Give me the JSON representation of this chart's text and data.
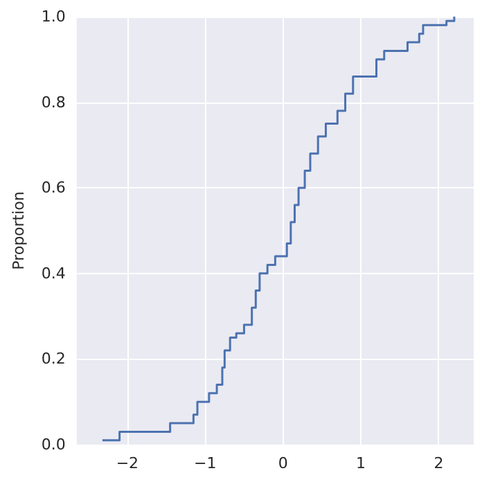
{
  "chart_data": {
    "type": "step",
    "ylabel": "Proportion",
    "x": [
      -2.32,
      -2.1,
      -1.45,
      -1.15,
      -1.1,
      -1.0,
      -0.95,
      -0.85,
      -0.78,
      -0.75,
      -0.68,
      -0.6,
      -0.5,
      -0.4,
      -0.35,
      -0.3,
      -0.2,
      -0.1,
      0.05,
      0.1,
      0.15,
      0.2,
      0.28,
      0.35,
      0.45,
      0.55,
      0.7,
      0.8,
      0.9,
      1.2,
      1.3,
      1.6,
      1.75,
      1.8,
      2.1,
      2.2
    ],
    "series": [
      {
        "color": "#4c72b0",
        "values": [
          0.01,
          0.03,
          0.05,
          0.07,
          0.1,
          0.1,
          0.12,
          0.14,
          0.18,
          0.22,
          0.25,
          0.26,
          0.28,
          0.32,
          0.36,
          0.4,
          0.42,
          0.44,
          0.47,
          0.52,
          0.56,
          0.6,
          0.64,
          0.68,
          0.72,
          0.75,
          0.78,
          0.82,
          0.86,
          0.9,
          0.92,
          0.94,
          0.96,
          0.98,
          0.99,
          1.0
        ]
      }
    ],
    "xlim": [
      -2.65,
      2.45
    ],
    "xticks": [
      {
        "value": -2,
        "label": "−2"
      },
      {
        "value": -1,
        "label": "−1"
      },
      {
        "value": 0,
        "label": "0"
      },
      {
        "value": 1,
        "label": "1"
      },
      {
        "value": 2,
        "label": "2"
      }
    ],
    "ylim": [
      0,
      1
    ],
    "yticks": [
      {
        "value": 0,
        "label": "0.0"
      },
      0.2,
      0.4,
      0.6,
      0.8,
      {
        "value": 1,
        "label": "1.0"
      }
    ],
    "grid": true,
    "marker": "none"
  }
}
